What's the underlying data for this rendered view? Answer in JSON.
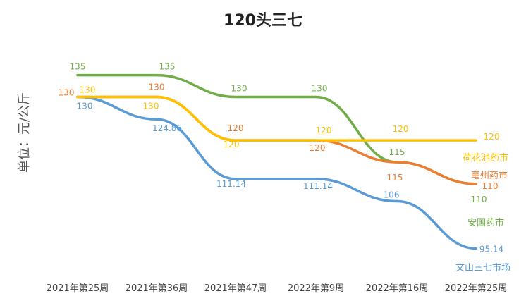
{
  "chart_data": {
    "type": "line",
    "title": "120头三七",
    "xlabel": "",
    "ylabel": "单位：元/公斤",
    "categories": [
      "2021年第25周",
      "2021年第36周",
      "2021年第47周",
      "2022年第9周",
      "2022年第16周",
      "2022年第25周"
    ],
    "ylim": [
      85,
      145
    ],
    "grid": false,
    "legend": "labels at line ends",
    "series": [
      {
        "name": "安国药市",
        "color": "#70AD47",
        "values": [
          135,
          135,
          130,
          130,
          115,
          110
        ],
        "labels": [
          "135",
          "135",
          "130",
          "130",
          "115",
          "110"
        ]
      },
      {
        "name": "亳州药市",
        "color": "#ED7D31",
        "values": [
          130,
          130,
          120,
          120,
          115,
          110
        ],
        "labels": [
          "130",
          "130",
          "120",
          "120",
          "115",
          "110"
        ]
      },
      {
        "name": "荷花池药市",
        "color": "#FFC000",
        "values": [
          130,
          130,
          120,
          120,
          120,
          120
        ],
        "labels": [
          "130",
          "130",
          "120",
          "120",
          "120",
          "120"
        ]
      },
      {
        "name": "文山三七市场",
        "color": "#5B9BD5",
        "values": [
          130,
          124.86,
          111.14,
          111.14,
          106,
          95.14
        ],
        "labels": [
          "130",
          "124.86",
          "111.14",
          "111.14",
          "106",
          "95.14"
        ]
      }
    ]
  }
}
